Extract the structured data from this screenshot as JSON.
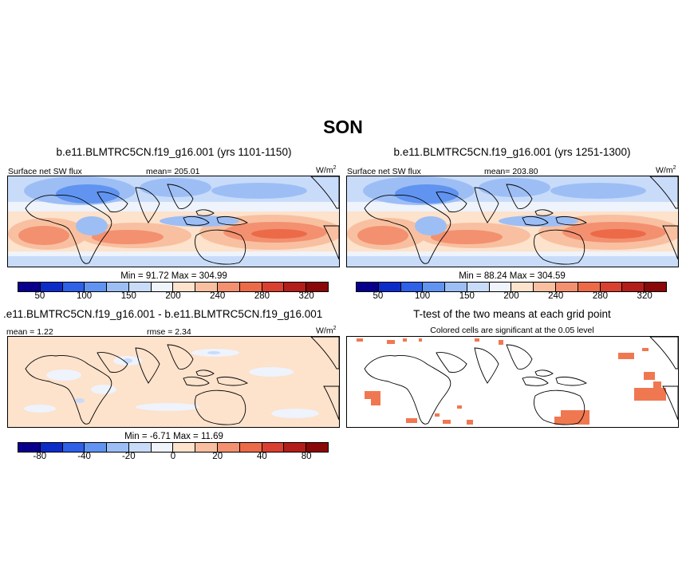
{
  "figure": {
    "title": "SON"
  },
  "panels": [
    {
      "title": "b.e11.BLMTRC5CN.f19_g16.001 (yrs 1101-1150)",
      "left_label": "Surface net SW flux",
      "center_label": "mean= 205.01",
      "units_base": "W/m",
      "units_exp": "2",
      "minmax": "Min =  91.72 Max = 304.99"
    },
    {
      "title": "b.e11.BLMTRC5CN.f19_g16.001 (yrs 1251-1300)",
      "left_label": "Surface net SW flux",
      "center_label": "mean= 203.80",
      "units_base": "W/m",
      "units_exp": "2",
      "minmax": "Min =  88.24 Max = 304.59"
    },
    {
      "title": ".e11.BLMTRC5CN.f19_g16.001 - b.e11.BLMTRC5CN.f19_g16.001",
      "left_label": "mean =   1.22",
      "center_label": "rmse =   2.34",
      "units_base": "W/m",
      "units_exp": "2",
      "minmax": "Min =  -6.71 Max =  11.69"
    },
    {
      "title": "T-test of the two means at each grid point",
      "subtitle": "Colored cells are significant at the 0.05 level",
      "highlight_color": "#f07850"
    }
  ],
  "colorbars": {
    "absolute": {
      "colors": [
        "#08008c",
        "#0c2cc8",
        "#2e60e8",
        "#6094f0",
        "#9dbef5",
        "#c8dcfa",
        "#eef3fc",
        "#fde2cc",
        "#f8c0a0",
        "#f39070",
        "#ec6a48",
        "#d94030",
        "#b31e1a",
        "#8a0808"
      ],
      "tick_labels": [
        "50",
        "100",
        "150",
        "200",
        "240",
        "280",
        "320"
      ],
      "tick_boundaries": [
        2,
        4,
        6,
        8,
        10,
        12
      ]
    },
    "difference": {
      "colors": [
        "#08008c",
        "#0c2cc8",
        "#2e60e8",
        "#6094f0",
        "#9dbef5",
        "#c8dcfa",
        "#eef3fc",
        "#fde2cc",
        "#f8c0a0",
        "#f39070",
        "#ec6a48",
        "#d94030",
        "#b31e1a",
        "#8a0808"
      ],
      "tick_labels": [
        "-80",
        "-40",
        "-20",
        "0",
        "20",
        "40",
        "80"
      ],
      "tick_boundaries": [
        2,
        4,
        6,
        8,
        10,
        12
      ]
    }
  }
}
